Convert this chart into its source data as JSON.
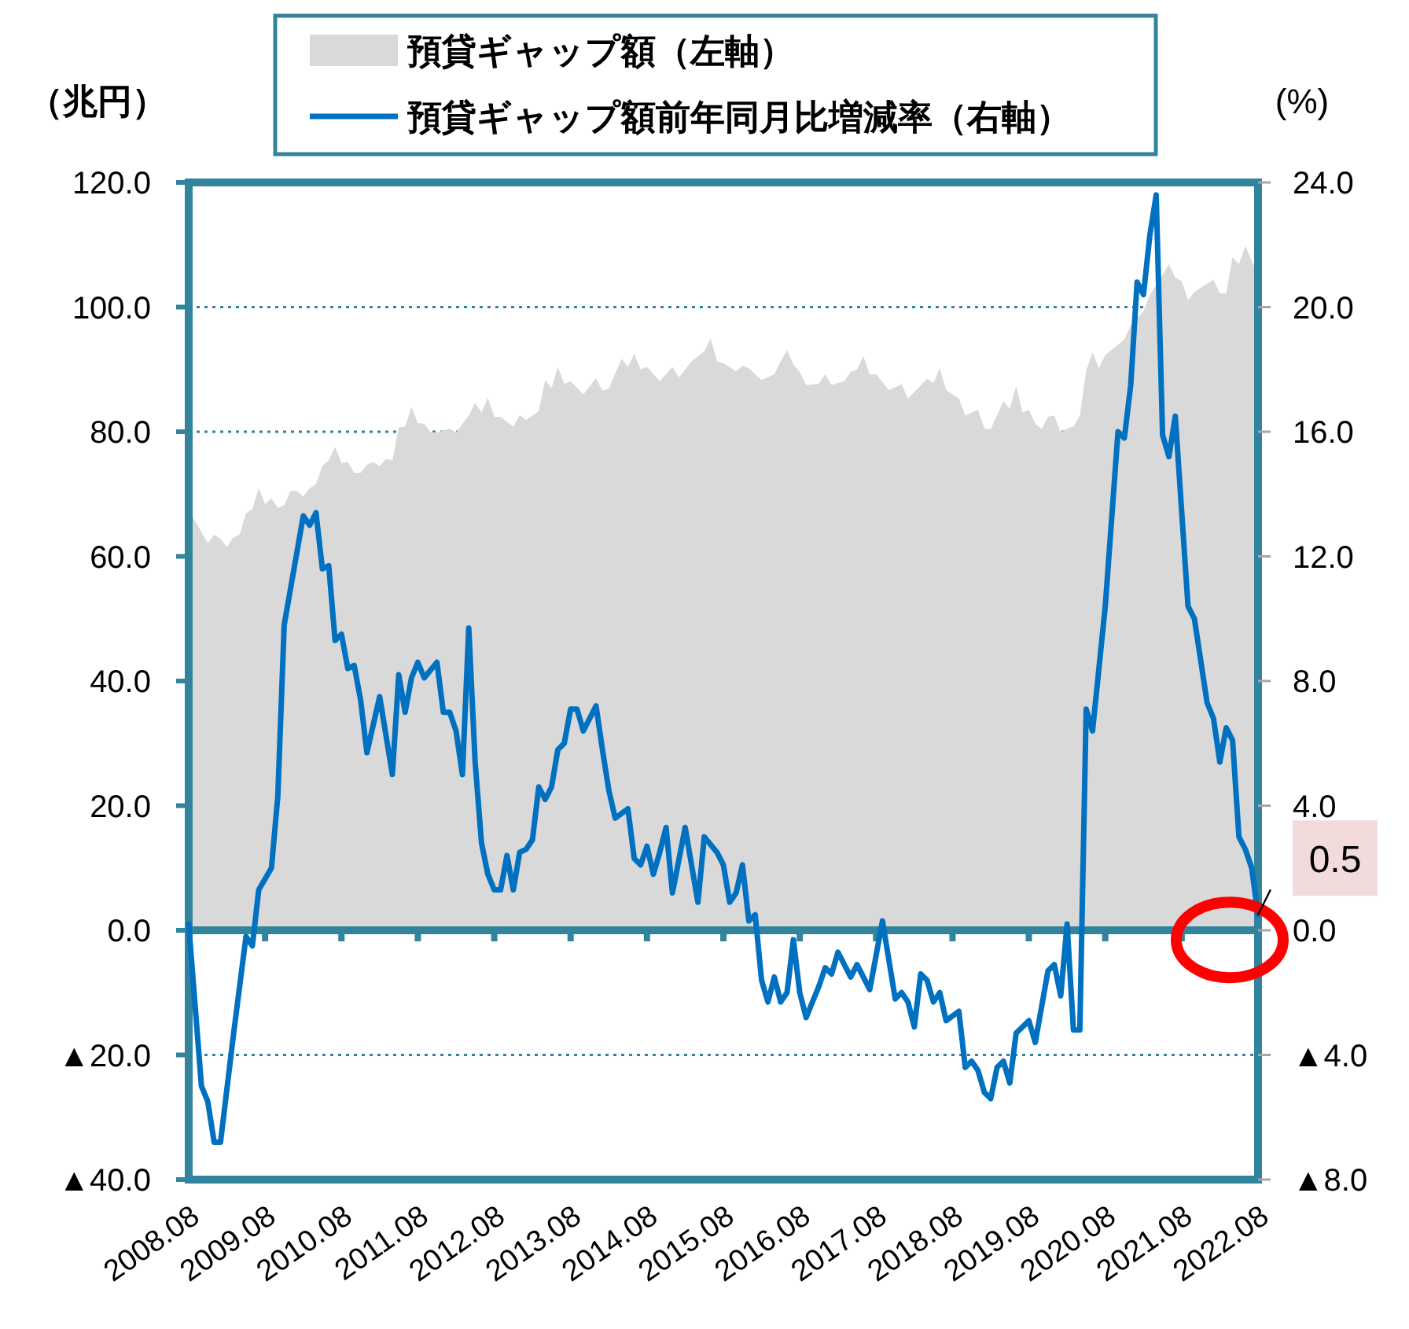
{
  "chart_data": {
    "type": "area",
    "ylabel": "（兆円）",
    "y2label": "(%)",
    "xlim": [
      "2008-08",
      "2022-08"
    ],
    "xticks": [
      {
        "value": "2008-08",
        "label": "2008.08"
      },
      {
        "value": "2009-08",
        "label": "2009.08"
      },
      {
        "value": "2010-08",
        "label": "2010.08"
      },
      {
        "value": "2011-08",
        "label": "2011.08"
      },
      {
        "value": "2012-08",
        "label": "2012.08"
      },
      {
        "value": "2013-08",
        "label": "2013.08"
      },
      {
        "value": "2014-08",
        "label": "2014.08"
      },
      {
        "value": "2015-08",
        "label": "2015.08"
      },
      {
        "value": "2016-08",
        "label": "2016.08"
      },
      {
        "value": "2017-08",
        "label": "2017.08"
      },
      {
        "value": "2018-08",
        "label": "2018.08"
      },
      {
        "value": "2019-08",
        "label": "2019.08"
      },
      {
        "value": "2020-08",
        "label": "2020.08"
      },
      {
        "value": "2021-08",
        "label": "2021.08"
      },
      {
        "value": "2022-08",
        "label": "2022.08"
      }
    ],
    "ylim": [
      -40,
      120
    ],
    "yticks": [
      {
        "value": -40,
        "label": "▲40.0"
      },
      {
        "value": -20,
        "label": "▲20.0"
      },
      {
        "value": 0,
        "label": "0.0"
      },
      {
        "value": 20,
        "label": "20.0"
      },
      {
        "value": 40,
        "label": "40.0"
      },
      {
        "value": 60,
        "label": "60.0"
      },
      {
        "value": 80,
        "label": "80.0"
      },
      {
        "value": 100,
        "label": "100.0"
      },
      {
        "value": 120,
        "label": "120.0"
      }
    ],
    "y2lim": [
      -8,
      24
    ],
    "y2ticks": [
      {
        "value": -8,
        "label": "▲8.0"
      },
      {
        "value": -4,
        "label": "▲4.0"
      },
      {
        "value": 0,
        "label": "0.0"
      },
      {
        "value": 4,
        "label": "4.0"
      },
      {
        "value": 8,
        "label": "8.0"
      },
      {
        "value": 12,
        "label": "12.0"
      },
      {
        "value": 16,
        "label": "16.0"
      },
      {
        "value": 20,
        "label": "20.0"
      },
      {
        "value": 24,
        "label": "24.0"
      }
    ],
    "grid": "y",
    "legend": "top",
    "ref_lines": [
      {
        "axis": "y",
        "value": 0,
        "color": "#31849b"
      }
    ],
    "series": [
      {
        "name": "預貸ギャップ額（左軸）",
        "type": "area",
        "axis": "y",
        "color": "#d9d9d9",
        "x": [
          "2008-08",
          "2008-11",
          "2008-12",
          "2009-01",
          "2009-02",
          "2009-03",
          "2009-04",
          "2009-05",
          "2009-06",
          "2009-07",
          "2009-08",
          "2009-09",
          "2009-10",
          "2009-11",
          "2009-12",
          "2010-01",
          "2010-02",
          "2010-03",
          "2010-04",
          "2010-05",
          "2010-06",
          "2010-07",
          "2010-08",
          "2010-09",
          "2010-10",
          "2010-11",
          "2010-12",
          "2011-01",
          "2011-02",
          "2011-03",
          "2011-04",
          "2011-05",
          "2011-06",
          "2011-07",
          "2011-08",
          "2011-09",
          "2011-10",
          "2011-11",
          "2012-01",
          "2012-02",
          "2012-04",
          "2012-05",
          "2012-06",
          "2012-07",
          "2012-08",
          "2012-09",
          "2012-11",
          "2012-12",
          "2013-01",
          "2013-03",
          "2013-04",
          "2013-05",
          "2013-06",
          "2013-07",
          "2013-08",
          "2013-10",
          "2013-12",
          "2014-01",
          "2014-02",
          "2014-04",
          "2014-05",
          "2014-06",
          "2014-07",
          "2014-08",
          "2014-10",
          "2014-12",
          "2015-01",
          "2015-03",
          "2015-05",
          "2015-06",
          "2015-07",
          "2015-08",
          "2015-10",
          "2015-11",
          "2015-12",
          "2016-02",
          "2016-04",
          "2016-05",
          "2016-06",
          "2016-07",
          "2016-08",
          "2016-09",
          "2016-11",
          "2016-12",
          "2017-01",
          "2017-03",
          "2017-04",
          "2017-05",
          "2017-06",
          "2017-07",
          "2017-08",
          "2017-10",
          "2017-12",
          "2018-01",
          "2018-04",
          "2018-05",
          "2018-06",
          "2018-07",
          "2018-09",
          "2018-10",
          "2018-12",
          "2019-01",
          "2019-02",
          "2019-04",
          "2019-05",
          "2019-06",
          "2019-07",
          "2019-08",
          "2019-09",
          "2019-10",
          "2019-11",
          "2019-12",
          "2020-01",
          "2020-02",
          "2020-03",
          "2020-04",
          "2020-05",
          "2020-06",
          "2020-07",
          "2020-08",
          "2020-11",
          "2020-12",
          "2021-02",
          "2021-03",
          "2021-05",
          "2021-06",
          "2021-07",
          "2021-08",
          "2021-09",
          "2021-10",
          "2021-12",
          "2022-01",
          "2022-02",
          "2022-03",
          "2022-04",
          "2022-05",
          "2022-06",
          "2022-07",
          "2022-08"
        ],
        "values": [
          67.5,
          62.1,
          63.5,
          62.8,
          61.5,
          63.0,
          63.5,
          66.9,
          67.6,
          70.9,
          68.4,
          69.3,
          67.8,
          68.2,
          70.5,
          70.5,
          69.6,
          70.9,
          71.6,
          74.5,
          75.4,
          77.6,
          75.0,
          75.1,
          73.4,
          73.4,
          74.7,
          75.1,
          74.5,
          75.6,
          75.4,
          80.7,
          80.8,
          83.9,
          81.4,
          81.3,
          79.9,
          79.9,
          80.5,
          79.9,
          82.6,
          84.6,
          83.1,
          85.5,
          82.4,
          82.4,
          80.8,
          82.7,
          81.9,
          83.3,
          88.3,
          87.0,
          90.4,
          87.7,
          88.1,
          86.0,
          88.6,
          86.6,
          86.9,
          91.7,
          90.4,
          92.5,
          90.0,
          90.4,
          88.1,
          90.4,
          88.7,
          91.3,
          92.9,
          95.0,
          91.3,
          91.0,
          89.7,
          90.6,
          90.2,
          88.3,
          89.2,
          91.3,
          93.1,
          90.8,
          89.6,
          87.5,
          87.7,
          89.2,
          87.5,
          88.1,
          89.6,
          90.0,
          92.1,
          89.2,
          89.2,
          86.7,
          87.6,
          85.3,
          88.5,
          87.8,
          90.2,
          86.7,
          85.3,
          82.6,
          83.5,
          80.5,
          80.4,
          84.9,
          83.7,
          87.3,
          83.1,
          83.5,
          81.3,
          80.4,
          82.4,
          82.6,
          79.9,
          80.5,
          80.8,
          82.6,
          89.8,
          92.7,
          90.2,
          92.3,
          94.8,
          97.1,
          99.3,
          102.0,
          105.1,
          106.9,
          104.7,
          104.2,
          101.1,
          102.4,
          103.8,
          104.4,
          102.2,
          102.2,
          108.0,
          106.9,
          109.8,
          107.4,
          105.1
        ]
      },
      {
        "name": "預貸ギャップ額前年同月比増減率（右軸）",
        "type": "line",
        "axis": "y2",
        "color": "#0070c0",
        "x": [
          "2008-08",
          "2008-10",
          "2008-11",
          "2008-12",
          "2009-01",
          "2009-03",
          "2009-05",
          "2009-06",
          "2009-07",
          "2009-09",
          "2009-10",
          "2009-11",
          "2010-02",
          "2010-03",
          "2010-04",
          "2010-05",
          "2010-06",
          "2010-07",
          "2010-08",
          "2010-09",
          "2010-10",
          "2010-11",
          "2010-12",
          "2011-02",
          "2011-04",
          "2011-05",
          "2011-06",
          "2011-07",
          "2011-08",
          "2011-09",
          "2011-11",
          "2011-12",
          "2012-01",
          "2012-02",
          "2012-03",
          "2012-04",
          "2012-05",
          "2012-06",
          "2012-07",
          "2012-08",
          "2012-09",
          "2012-10",
          "2012-11",
          "2012-12",
          "2013-01",
          "2013-02",
          "2013-03",
          "2013-04",
          "2013-05",
          "2013-06",
          "2013-07",
          "2013-08",
          "2013-09",
          "2013-10",
          "2013-12",
          "2014-01",
          "2014-02",
          "2014-03",
          "2014-05",
          "2014-06",
          "2014-07",
          "2014-08",
          "2014-09",
          "2014-10",
          "2014-11",
          "2014-12",
          "2015-02",
          "2015-04",
          "2015-05",
          "2015-07",
          "2015-08",
          "2015-09",
          "2015-10",
          "2015-11",
          "2015-12",
          "2016-01",
          "2016-02",
          "2016-03",
          "2016-04",
          "2016-05",
          "2016-06",
          "2016-07",
          "2016-08",
          "2016-09",
          "2016-11",
          "2016-12",
          "2017-01",
          "2017-02",
          "2017-04",
          "2017-05",
          "2017-07",
          "2017-09",
          "2017-11",
          "2017-12",
          "2018-01",
          "2018-02",
          "2018-03",
          "2018-04",
          "2018-05",
          "2018-06",
          "2018-07",
          "2018-09",
          "2018-10",
          "2018-11",
          "2018-12",
          "2019-01",
          "2019-02",
          "2019-03",
          "2019-04",
          "2019-05",
          "2019-06",
          "2019-08",
          "2019-09",
          "2019-11",
          "2019-12",
          "2020-01",
          "2020-02",
          "2020-03",
          "2020-04",
          "2020-05",
          "2020-06",
          "2020-08",
          "2020-10",
          "2020-11",
          "2020-12",
          "2021-01",
          "2021-02",
          "2021-03",
          "2021-04",
          "2021-05",
          "2021-06",
          "2021-07",
          "2021-09",
          "2021-10",
          "2021-12",
          "2022-01",
          "2022-02",
          "2022-03",
          "2022-04",
          "2022-05",
          "2022-06",
          "2022-07",
          "2022-08"
        ],
        "values": [
          0.2,
          -5.0,
          -5.5,
          -6.8,
          -6.8,
          -3.4,
          -0.2,
          -0.5,
          1.3,
          2.0,
          4.3,
          9.8,
          13.3,
          13.0,
          13.4,
          11.6,
          11.7,
          9.3,
          9.5,
          8.4,
          8.5,
          7.4,
          5.7,
          7.5,
          5.0,
          8.2,
          7.0,
          8.1,
          8.6,
          8.1,
          8.6,
          7.0,
          7.0,
          6.4,
          5.0,
          9.7,
          5.4,
          2.8,
          1.8,
          1.3,
          1.3,
          2.4,
          1.3,
          2.5,
          2.6,
          2.9,
          4.6,
          4.2,
          4.6,
          5.8,
          6.0,
          7.1,
          7.1,
          6.4,
          7.2,
          5.8,
          4.5,
          3.6,
          3.9,
          2.3,
          2.1,
          2.7,
          1.8,
          2.5,
          3.3,
          1.2,
          3.3,
          0.9,
          3.0,
          2.5,
          2.1,
          0.9,
          1.2,
          2.1,
          0.3,
          0.5,
          -1.6,
          -2.3,
          -1.5,
          -2.3,
          -2.0,
          -0.3,
          -2.0,
          -2.8,
          -1.8,
          -1.2,
          -1.4,
          -0.7,
          -1.5,
          -1.1,
          -1.9,
          0.3,
          -2.2,
          -2.0,
          -2.3,
          -3.1,
          -1.4,
          -1.6,
          -2.3,
          -2.0,
          -2.9,
          -2.6,
          -4.4,
          -4.2,
          -4.5,
          -5.2,
          -5.4,
          -4.4,
          -4.2,
          -4.9,
          -3.3,
          -2.9,
          -3.6,
          -1.3,
          -1.1,
          -2.1,
          0.2,
          -3.2,
          -3.2,
          7.1,
          6.4,
          10.4,
          16.0,
          15.8,
          17.5,
          20.8,
          20.4,
          22.3,
          23.6,
          15.9,
          15.2,
          16.5,
          10.4,
          10.0,
          7.3,
          6.8,
          5.4,
          6.5,
          6.1,
          3.0,
          2.6,
          2.0,
          0.5
        ]
      }
    ],
    "annotations": [
      {
        "text": "0.5",
        "x": "2022-08",
        "y": 0.5
      }
    ]
  }
}
